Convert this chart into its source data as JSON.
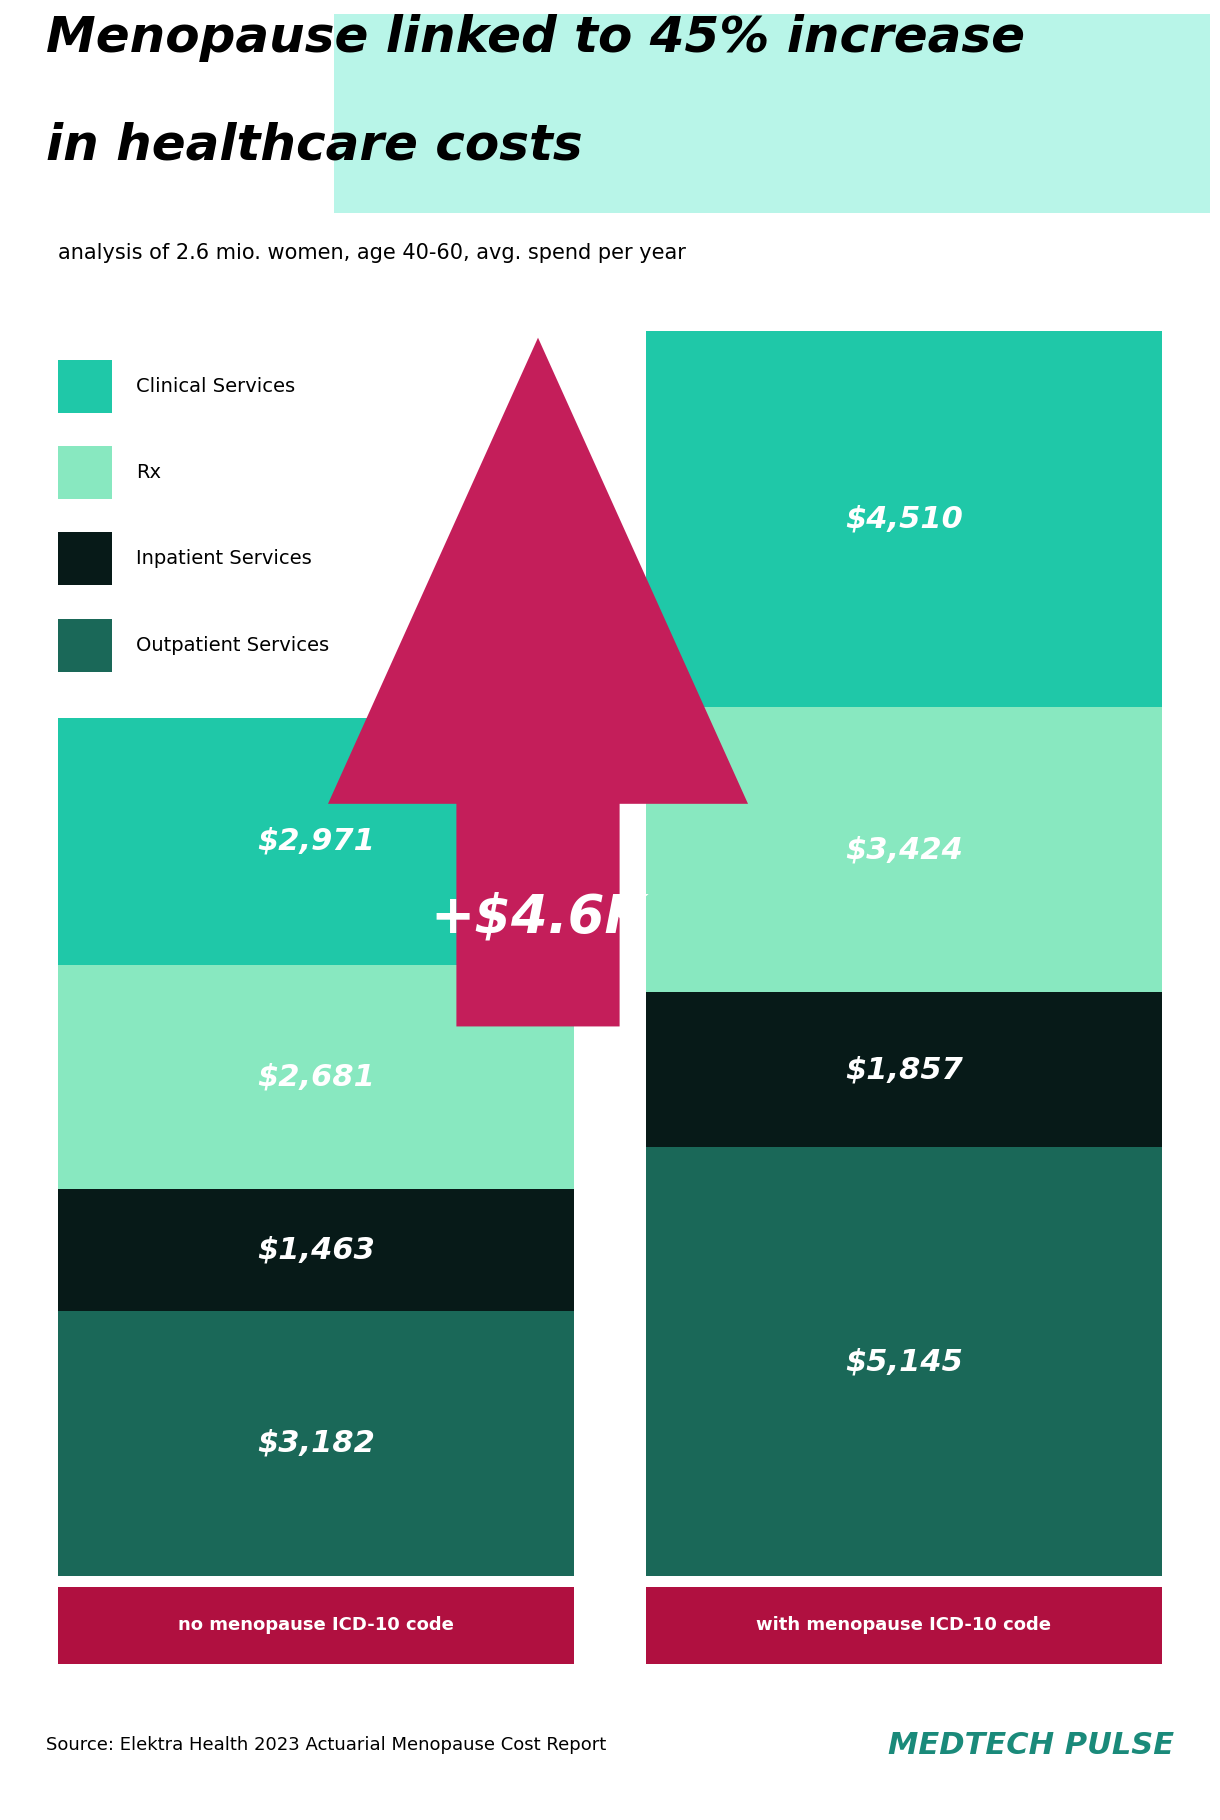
{
  "title_line1": "Menopause linked to 45% increase",
  "title_line2": "in healthcare costs",
  "subtitle": "analysis of 2.6 mio. women, age 40-60, avg. spend per year",
  "title_highlight_color": "#b8f5e8",
  "background_color": "#ffffff",
  "footer_bg_color": "#c8f5e8",
  "footer_source": "Source: Elektra Health 2023 Actuarial Menopause Cost Report",
  "footer_brand": "MEDTECH PULSE",
  "footer_brand_color": "#1a8a7a",
  "arrow_color": "#c41e5a",
  "arrow_label": "+$4.6K",
  "bar_labels": [
    "no menopause ICD-10 code",
    "with menopause ICD-10 code"
  ],
  "label_bg_color": "#b01040",
  "segments": [
    "Clinical Services",
    "Rx",
    "Inpatient Services",
    "Outpatient Services"
  ],
  "seg_colors": [
    "#1fc8a8",
    "#88e8c0",
    "#071a18",
    "#1a6858"
  ],
  "values_no": [
    2971,
    2681,
    1463,
    3182
  ],
  "values_with": [
    4510,
    3424,
    1857,
    5145
  ],
  "labels_no": [
    "$2,971",
    "$2,681",
    "$1,463",
    "$3,182"
  ],
  "labels_with": [
    "$4,510",
    "$3,424",
    "$1,857",
    "$5,145"
  ],
  "seg_order": [
    3,
    2,
    1,
    0
  ]
}
